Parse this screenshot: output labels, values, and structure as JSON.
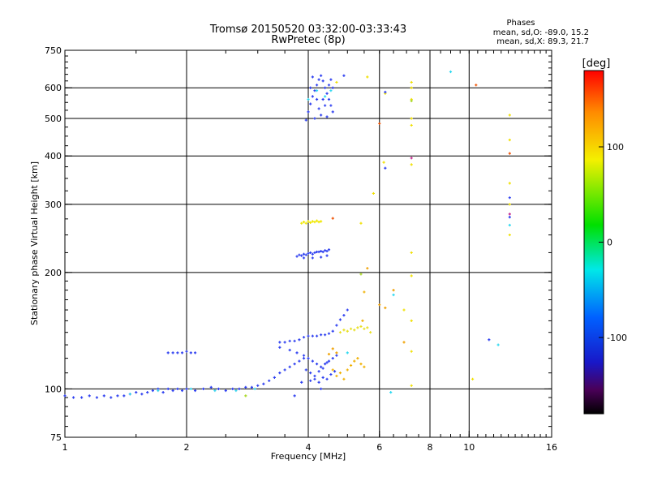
{
  "chart_data": {
    "type": "scatter",
    "title": "Tromsø 20150520 03:32:00-03:33:43",
    "subtitle": "RwPretec (8p)",
    "phases_block": {
      "heading": "Phases",
      "line1": "mean, sd,O: -89.0, 15.2",
      "line2": "mean, sd,X:  89.3, 21.7"
    },
    "xlabel": "Frequency [MHz]",
    "ylabel": "Stationary phase Virtual Height [km]",
    "x_scale": "log",
    "y_scale": "log",
    "xlim": [
      1,
      16
    ],
    "ylim": [
      75,
      750
    ],
    "x_ticks": [
      1,
      2,
      4,
      6,
      8,
      10,
      16
    ],
    "x_tick_labels": [
      "1",
      "2",
      "4",
      "6",
      "8",
      "10",
      "16"
    ],
    "y_ticks": [
      75,
      100,
      200,
      300,
      400,
      500,
      600,
      750
    ],
    "y_tick_labels": [
      "75",
      "100",
      "200",
      "300",
      "400",
      "500",
      "600",
      "750"
    ],
    "grid_x": [
      2,
      4,
      6,
      8,
      10
    ],
    "grid_y": [
      100,
      200,
      300,
      400,
      500,
      600
    ],
    "grid": true,
    "colorbar": {
      "label": "[deg]",
      "range": [
        -180,
        180
      ],
      "ticks": [
        100,
        0,
        -100
      ],
      "tick_labels": [
        "100",
        "0",
        "-100"
      ]
    },
    "series": [
      {
        "color": "#2a3cf0",
        "points": [
          [
            1.0,
            96
          ],
          [
            1.05,
            95
          ],
          [
            1.1,
            95
          ],
          [
            1.15,
            96
          ],
          [
            1.2,
            95
          ],
          [
            1.25,
            96
          ],
          [
            1.3,
            95
          ],
          [
            1.35,
            96
          ],
          [
            1.4,
            96
          ],
          [
            1.45,
            97
          ],
          [
            1.5,
            98
          ],
          [
            1.55,
            97
          ],
          [
            1.6,
            98
          ],
          [
            1.65,
            99
          ],
          [
            1.7,
            100
          ],
          [
            1.75,
            98
          ],
          [
            1.8,
            100
          ],
          [
            1.85,
            99
          ],
          [
            1.9,
            100
          ],
          [
            1.95,
            99
          ],
          [
            2.0,
            100
          ],
          [
            2.1,
            99
          ],
          [
            2.2,
            100
          ],
          [
            2.3,
            101
          ],
          [
            2.4,
            100
          ],
          [
            2.5,
            99
          ],
          [
            2.6,
            100
          ],
          [
            2.7,
            100
          ],
          [
            2.8,
            101
          ],
          [
            2.9,
            101
          ],
          [
            3.0,
            102
          ],
          [
            3.1,
            103
          ],
          [
            3.2,
            105
          ],
          [
            3.3,
            107
          ],
          [
            3.4,
            110
          ],
          [
            3.5,
            112
          ],
          [
            3.6,
            114
          ],
          [
            3.7,
            116
          ],
          [
            3.8,
            118
          ],
          [
            3.9,
            120
          ]
        ]
      },
      {
        "color": "#3ad2ec",
        "points": [
          [
            1.45,
            97
          ],
          [
            1.7,
            99
          ],
          [
            2.05,
            100
          ],
          [
            2.35,
            99
          ],
          [
            2.65,
            99
          ],
          [
            2.95,
            100
          ]
        ]
      },
      {
        "color": "#2a3cf0",
        "points": [
          [
            1.8,
            124
          ],
          [
            1.85,
            124
          ],
          [
            1.9,
            124
          ],
          [
            1.95,
            124
          ],
          [
            2.0,
            125
          ],
          [
            2.05,
            124
          ],
          [
            2.1,
            124
          ]
        ]
      },
      {
        "color": "#2a3cf0",
        "points": [
          [
            3.4,
            132
          ],
          [
            3.5,
            132
          ],
          [
            3.6,
            133
          ],
          [
            3.7,
            133
          ],
          [
            3.8,
            134
          ],
          [
            3.9,
            136
          ],
          [
            4.0,
            137
          ],
          [
            4.1,
            137
          ],
          [
            4.2,
            137
          ],
          [
            4.3,
            138
          ],
          [
            4.4,
            138
          ],
          [
            4.5,
            139
          ],
          [
            4.6,
            141
          ],
          [
            4.7,
            146
          ],
          [
            4.8,
            151
          ],
          [
            4.9,
            155
          ],
          [
            5.0,
            160
          ]
        ]
      },
      {
        "color": "#2a3cf0",
        "points": [
          [
            3.4,
            128
          ],
          [
            3.6,
            126
          ],
          [
            3.75,
            124
          ],
          [
            3.9,
            122
          ],
          [
            4.0,
            120
          ],
          [
            4.1,
            118
          ],
          [
            4.2,
            116
          ],
          [
            4.3,
            114
          ],
          [
            4.4,
            116
          ],
          [
            4.5,
            118
          ],
          [
            4.6,
            120
          ],
          [
            4.7,
            122
          ],
          [
            3.95,
            112
          ],
          [
            4.05,
            110
          ],
          [
            4.15,
            108
          ],
          [
            4.25,
            111
          ],
          [
            4.35,
            113
          ],
          [
            4.45,
            117
          ],
          [
            3.85,
            104
          ],
          [
            4.05,
            105
          ],
          [
            4.15,
            106
          ],
          [
            4.25,
            104
          ],
          [
            4.35,
            107
          ],
          [
            4.45,
            106
          ],
          [
            4.55,
            109
          ],
          [
            4.65,
            111
          ]
        ]
      },
      {
        "color": "#2a3cf0",
        "points": [
          [
            3.75,
            220
          ],
          [
            3.8,
            222
          ],
          [
            3.85,
            221
          ],
          [
            3.9,
            223
          ],
          [
            3.95,
            222
          ],
          [
            4.0,
            224
          ],
          [
            4.05,
            225
          ],
          [
            4.1,
            223
          ],
          [
            4.15,
            225
          ],
          [
            4.2,
            226
          ],
          [
            4.25,
            226
          ],
          [
            4.3,
            227
          ],
          [
            4.35,
            226
          ],
          [
            4.4,
            228
          ],
          [
            4.45,
            227
          ],
          [
            4.5,
            229
          ],
          [
            3.9,
            218
          ],
          [
            4.1,
            218
          ],
          [
            4.3,
            219
          ],
          [
            4.45,
            221
          ]
        ]
      },
      {
        "color": "#f0e800",
        "points": [
          [
            3.85,
            268
          ],
          [
            3.9,
            270
          ],
          [
            3.95,
            268
          ],
          [
            4.0,
            271
          ],
          [
            4.05,
            269
          ],
          [
            4.1,
            271
          ],
          [
            4.15,
            270
          ],
          [
            4.2,
            272
          ],
          [
            4.25,
            270
          ],
          [
            4.3,
            271
          ]
        ]
      },
      {
        "color": "#2a3cf0",
        "points": [
          [
            3.95,
            495
          ],
          [
            4.0,
            520
          ],
          [
            4.05,
            545
          ],
          [
            4.1,
            570
          ],
          [
            4.15,
            590
          ],
          [
            4.2,
            610
          ],
          [
            4.25,
            630
          ],
          [
            4.3,
            645
          ],
          [
            4.35,
            625
          ],
          [
            4.4,
            600
          ],
          [
            4.45,
            580
          ],
          [
            4.5,
            560
          ],
          [
            4.55,
            540
          ],
          [
            4.6,
            520
          ],
          [
            4.05,
            600
          ],
          [
            4.1,
            640
          ],
          [
            4.2,
            560
          ],
          [
            4.25,
            530
          ],
          [
            4.35,
            560
          ],
          [
            4.4,
            540
          ],
          [
            4.5,
            610
          ],
          [
            4.55,
            630
          ],
          [
            4.6,
            600
          ],
          [
            4.15,
            500
          ],
          [
            4.3,
            510
          ],
          [
            4.45,
            505
          ]
        ]
      },
      {
        "color": "#2ad8f0",
        "points": [
          [
            4.0,
            560
          ],
          [
            4.2,
            590
          ],
          [
            4.4,
            570
          ],
          [
            4.55,
            590
          ]
        ]
      },
      {
        "color": "#e8e020",
        "points": [
          [
            4.8,
            140
          ],
          [
            4.9,
            142
          ],
          [
            5.0,
            141
          ],
          [
            5.1,
            143
          ],
          [
            5.2,
            142
          ],
          [
            5.3,
            144
          ],
          [
            5.4,
            145
          ],
          [
            5.5,
            143
          ],
          [
            5.6,
            144
          ],
          [
            5.7,
            140
          ]
        ]
      },
      {
        "color": "#f0b000",
        "points": [
          [
            4.6,
            112
          ],
          [
            4.7,
            108
          ],
          [
            4.8,
            110
          ],
          [
            4.9,
            106
          ],
          [
            5.0,
            112
          ],
          [
            5.1,
            115
          ],
          [
            5.2,
            118
          ],
          [
            5.3,
            120
          ],
          [
            5.4,
            116
          ],
          [
            5.5,
            114
          ],
          [
            5.5,
            178
          ],
          [
            5.45,
            150
          ]
        ]
      },
      {
        "color": "#f0a000",
        "points": [
          [
            4.5,
            123
          ],
          [
            4.6,
            127
          ],
          [
            4.7,
            124
          ],
          [
            5.6,
            205
          ],
          [
            6.9,
            132
          ],
          [
            6.2,
            162
          ],
          [
            6.5,
            180
          ],
          [
            6.0,
            165
          ]
        ]
      },
      {
        "color": "#f0e000",
        "points": [
          [
            7.2,
            620
          ],
          [
            7.2,
            600
          ],
          [
            7.2,
            560
          ],
          [
            7.2,
            500
          ],
          [
            7.2,
            480
          ],
          [
            7.2,
            380
          ],
          [
            7.2,
            225
          ],
          [
            7.2,
            196
          ],
          [
            7.2,
            150
          ],
          [
            7.2,
            125
          ],
          [
            7.2,
            102
          ],
          [
            6.9,
            160
          ],
          [
            10.2,
            106
          ],
          [
            12.6,
            510
          ],
          [
            12.6,
            440
          ],
          [
            12.6,
            340
          ],
          [
            12.6,
            300
          ],
          [
            12.6,
            250
          ],
          [
            5.6,
            640
          ],
          [
            4.7,
            620
          ],
          [
            6.15,
            385
          ],
          [
            6.2,
            580
          ],
          [
            5.8,
            320
          ],
          [
            5.4,
            268
          ]
        ]
      },
      {
        "color": "#f05000",
        "points": [
          [
            10.4,
            610
          ],
          [
            12.6,
            406
          ],
          [
            4.6,
            276
          ],
          [
            6.0,
            485
          ]
        ]
      },
      {
        "color": "#2a3cf0",
        "points": [
          [
            6.2,
            372
          ],
          [
            6.2,
            585
          ],
          [
            11.2,
            134
          ],
          [
            12.6,
            312
          ],
          [
            12.6,
            278
          ],
          [
            4.3,
            100
          ],
          [
            3.7,
            96
          ],
          [
            4.9,
            645
          ]
        ]
      },
      {
        "color": "#2ad8f0",
        "points": [
          [
            6.4,
            98
          ],
          [
            9.0,
            660
          ],
          [
            11.8,
            130
          ],
          [
            12.6,
            265
          ],
          [
            6.5,
            175
          ],
          [
            5.0,
            124
          ]
        ]
      },
      {
        "color": "#c0208a",
        "points": [
          [
            12.6,
            283
          ],
          [
            7.2,
            395
          ]
        ]
      },
      {
        "color": "#a8d820",
        "points": [
          [
            2.8,
            96
          ],
          [
            7.2,
            555
          ],
          [
            5.4,
            198
          ]
        ]
      }
    ]
  }
}
